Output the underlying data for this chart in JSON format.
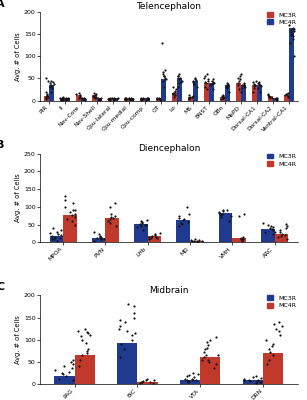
{
  "panel_A": {
    "title": "Telencephalon",
    "ylabel": "Avg. # of Cells",
    "ylim": [
      0,
      200
    ],
    "yticks": [
      0,
      50,
      100,
      150,
      200
    ],
    "categories": [
      "PIR",
      "II",
      "Nav-Core",
      "Nav-Shell",
      "Cpu-lateral",
      "Cpu-medial",
      "Cpu-comp",
      "OT",
      "Lo",
      "MS",
      "BNST",
      "OBn",
      "MePD",
      "Dorsal-CA1",
      "Dorsal-CA2",
      "Ventral-CA1"
    ],
    "mc3r_means": [
      10,
      5,
      12,
      12,
      5,
      5,
      5,
      5,
      18,
      8,
      40,
      8,
      40,
      35,
      10,
      12
    ],
    "mc4r_means": [
      35,
      5,
      5,
      5,
      5,
      5,
      5,
      48,
      50,
      45,
      40,
      35,
      35,
      35,
      5,
      165
    ],
    "mc3r_color": "#c0392b",
    "mc4r_color": "#1f3a8f",
    "mc3r_dots": [
      [
        5,
        10,
        15,
        20,
        8,
        12,
        3,
        7,
        45,
        50
      ],
      [
        2,
        5,
        8,
        4,
        6,
        3,
        2,
        5
      ],
      [
        5,
        8,
        12,
        10,
        15,
        18
      ],
      [
        5,
        8,
        12,
        10,
        15,
        18,
        8
      ],
      [
        2,
        4,
        6,
        3,
        5,
        4
      ],
      [
        2,
        4,
        6,
        3,
        5,
        4
      ],
      [
        2,
        4,
        6,
        3,
        5,
        4
      ],
      [
        2,
        4,
        6,
        3,
        5,
        4
      ],
      [
        8,
        12,
        18,
        22,
        25,
        20,
        15,
        30
      ],
      [
        4,
        6,
        10,
        8,
        12,
        6,
        8
      ],
      [
        25,
        30,
        40,
        45,
        50,
        55,
        60,
        48,
        42
      ],
      [
        4,
        6,
        10,
        8,
        12,
        6,
        8
      ],
      [
        25,
        35,
        45,
        50,
        40,
        55,
        60,
        48
      ],
      [
        20,
        28,
        35,
        42,
        38,
        45,
        32
      ],
      [
        5,
        8,
        12,
        10,
        15,
        8
      ],
      [
        8,
        12,
        18,
        10,
        15,
        14
      ]
    ],
    "mc4r_dots": [
      [
        20,
        30,
        40,
        45,
        35,
        38,
        32,
        42,
        28
      ],
      [
        2,
        4,
        6,
        3,
        5,
        4
      ],
      [
        2,
        4,
        6,
        3,
        5,
        4
      ],
      [
        2,
        4,
        6,
        3,
        5,
        4
      ],
      [
        2,
        4,
        6,
        3,
        5,
        4
      ],
      [
        2,
        4,
        6,
        3,
        5,
        4
      ],
      [
        2,
        4,
        6,
        3,
        5,
        4
      ],
      [
        30,
        45,
        55,
        60,
        65,
        70,
        48,
        50,
        55,
        130
      ],
      [
        30,
        40,
        50,
        55,
        48,
        42,
        60,
        55,
        45
      ],
      [
        30,
        38,
        42,
        48,
        44,
        50,
        38,
        46
      ],
      [
        25,
        35,
        42,
        48,
        38,
        44,
        40
      ],
      [
        20,
        28,
        35,
        40,
        32,
        38,
        30
      ],
      [
        20,
        28,
        35,
        40,
        32,
        38,
        30
      ],
      [
        20,
        28,
        35,
        40,
        32,
        38,
        42
      ],
      [
        2,
        4,
        6,
        3,
        5,
        4
      ],
      [
        100,
        130,
        150,
        160,
        165,
        170,
        155,
        145,
        148,
        158,
        140,
        162
      ]
    ]
  },
  "panel_B": {
    "title": "Diencephalon",
    "ylabel": "Avg. # of Cells",
    "ylim": [
      0,
      250
    ],
    "yticks": [
      0,
      50,
      100,
      150,
      200,
      250
    ],
    "categories": [
      "MPOA",
      "PVN",
      "LHb",
      "MD",
      "VMH",
      "ARC"
    ],
    "mc3r_means": [
      18,
      12,
      52,
      62,
      82,
      38
    ],
    "mc4r_means": [
      78,
      68,
      18,
      5,
      12,
      22
    ],
    "mc3r_color": "#1f3a8f",
    "mc4r_color": "#c0392b",
    "mc3r_dots": [
      [
        5,
        10,
        15,
        20,
        25,
        18,
        22,
        12,
        8,
        30,
        35,
        40
      ],
      [
        5,
        8,
        12,
        15,
        10,
        14,
        8,
        18,
        22,
        28
      ],
      [
        35,
        45,
        55,
        60,
        52,
        48,
        62,
        50,
        58,
        42
      ],
      [
        45,
        55,
        65,
        75,
        62,
        58,
        52,
        68,
        80,
        100
      ],
      [
        60,
        72,
        85,
        90,
        82,
        88,
        78,
        92,
        80,
        75
      ],
      [
        22,
        30,
        38,
        45,
        40,
        48,
        35,
        42,
        55
      ]
    ],
    "mc4r_dots": [
      [
        50,
        65,
        80,
        90,
        78,
        85,
        72,
        92,
        120,
        110,
        130,
        60,
        100
      ],
      [
        45,
        55,
        72,
        65,
        68,
        75,
        60,
        80,
        100,
        110
      ],
      [
        8,
        12,
        18,
        20,
        15,
        22,
        12,
        16,
        25
      ],
      [
        2,
        4,
        6,
        3,
        5,
        4,
        8,
        6
      ],
      [
        5,
        8,
        12,
        10,
        15,
        8,
        75,
        80
      ],
      [
        8,
        15,
        22,
        28,
        20,
        30,
        35,
        40,
        18,
        45,
        52
      ]
    ]
  },
  "panel_C": {
    "title": "Midbrain",
    "ylabel": "Avg. # of Cells",
    "ylim": [
      0,
      200
    ],
    "yticks": [
      0,
      50,
      100,
      150,
      200
    ],
    "categories": [
      "PAG",
      "BIC",
      "VTA",
      "DRN"
    ],
    "mc3r_means": [
      18,
      92,
      10,
      8
    ],
    "mc4r_means": [
      65,
      5,
      60,
      70
    ],
    "mc3r_color": "#1f3a8f",
    "mc4r_color": "#c0392b",
    "mc3r_dots": [
      [
        8,
        12,
        18,
        22,
        28,
        32,
        25,
        35,
        40,
        45,
        50,
        55
      ],
      [
        60,
        80,
        100,
        120,
        130,
        145,
        160,
        175,
        140,
        110,
        90,
        115,
        125,
        150,
        180
      ],
      [
        4,
        6,
        10,
        12,
        8,
        15,
        18,
        22,
        12,
        6,
        8,
        20,
        25
      ],
      [
        3,
        5,
        8,
        6,
        4,
        10,
        12,
        8,
        6,
        14,
        15,
        18
      ]
    ],
    "mc4r_dots": [
      [
        40,
        55,
        65,
        75,
        70,
        80,
        92,
        100,
        110,
        118,
        125,
        120,
        108,
        115
      ],
      [
        2,
        4,
        6,
        3,
        5,
        4,
        8,
        10,
        12
      ],
      [
        35,
        45,
        55,
        65,
        72,
        60,
        78,
        82,
        88,
        65,
        55,
        50,
        95,
        100,
        105
      ],
      [
        45,
        55,
        65,
        72,
        80,
        85,
        90,
        100,
        110,
        120,
        140,
        125,
        130,
        135
      ]
    ]
  },
  "dot_color": "#111111",
  "bar_width": 0.32,
  "dot_size": 2.5,
  "legend_mc3r": "MC3R",
  "legend_mc4r": "MC4R"
}
